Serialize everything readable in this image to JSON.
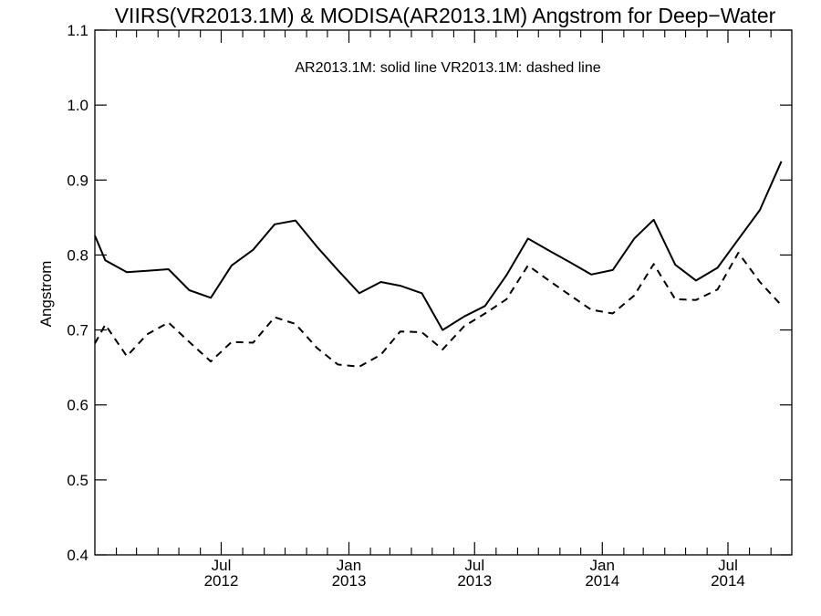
{
  "chart_data": {
    "type": "line",
    "title": "VIIRS(VR2013.1M) & MODISA(AR2013.1M)  Angstrom for Deep−Water",
    "xlabel": "",
    "ylabel": "Angstrom",
    "annotation": "AR2013.1M: solid line   VR2013.1M: dashed line",
    "xlim": [
      "2012-01-01",
      "2014-10-01"
    ],
    "ylim": [
      0.4,
      1.1
    ],
    "yticks": [
      0.4,
      0.5,
      0.6,
      0.7,
      0.8,
      0.9,
      1.0,
      1.1
    ],
    "ytick_labels": [
      "0.4",
      "0.5",
      "0.6",
      "0.7",
      "0.8",
      "0.9",
      "1.0",
      "1.1"
    ],
    "xticks_major": [
      {
        "date": "2012-07-01",
        "month": "Jul",
        "year": "2012"
      },
      {
        "date": "2013-01-01",
        "month": "Jan",
        "year": "2013"
      },
      {
        "date": "2013-07-01",
        "month": "Jul",
        "year": "2013"
      },
      {
        "date": "2014-01-01",
        "month": "Jan",
        "year": "2014"
      },
      {
        "date": "2014-07-01",
        "month": "Jul",
        "year": "2014"
      }
    ],
    "xticks_minor": [
      "2012-02-01",
      "2012-03-01",
      "2012-04-01",
      "2012-05-01",
      "2012-06-01",
      "2012-08-01",
      "2012-09-01",
      "2012-10-01",
      "2012-11-01",
      "2012-12-01",
      "2013-02-01",
      "2013-03-01",
      "2013-04-01",
      "2013-05-01",
      "2013-06-01",
      "2013-08-01",
      "2013-09-01",
      "2013-10-01",
      "2013-11-01",
      "2013-12-01",
      "2014-02-01",
      "2014-03-01",
      "2014-04-01",
      "2014-05-01",
      "2014-06-01",
      "2014-08-01",
      "2014-09-01"
    ],
    "grid": false,
    "series": [
      {
        "style": "solid",
        "color": "#000000",
        "points": [
          [
            "2012-01-01",
            0.826
          ],
          [
            "2012-01-16",
            0.793
          ],
          [
            "2012-02-16",
            0.777
          ],
          [
            "2012-03-16",
            0.779
          ],
          [
            "2012-04-16",
            0.781
          ],
          [
            "2012-05-16",
            0.753
          ],
          [
            "2012-06-16",
            0.743
          ],
          [
            "2012-07-16",
            0.786
          ],
          [
            "2012-08-16",
            0.807
          ],
          [
            "2012-09-16",
            0.841
          ],
          [
            "2012-10-16",
            0.846
          ],
          [
            "2012-11-16",
            0.811
          ],
          [
            "2012-12-16",
            0.78
          ],
          [
            "2013-01-16",
            0.749
          ],
          [
            "2013-02-16",
            0.764
          ],
          [
            "2013-03-16",
            0.759
          ],
          [
            "2013-04-16",
            0.749
          ],
          [
            "2013-05-16",
            0.7
          ],
          [
            "2013-06-16",
            0.718
          ],
          [
            "2013-07-16",
            0.732
          ],
          [
            "2013-08-16",
            0.773
          ],
          [
            "2013-09-16",
            0.822
          ],
          [
            "2013-10-16",
            0.806
          ],
          [
            "2013-11-16",
            0.79
          ],
          [
            "2013-12-16",
            0.774
          ],
          [
            "2014-01-16",
            0.78
          ],
          [
            "2014-02-16",
            0.822
          ],
          [
            "2014-03-16",
            0.847
          ],
          [
            "2014-04-16",
            0.787
          ],
          [
            "2014-05-16",
            0.766
          ],
          [
            "2014-06-16",
            0.783
          ],
          [
            "2014-07-16",
            0.821
          ],
          [
            "2014-08-16",
            0.86
          ],
          [
            "2014-09-16",
            0.925
          ]
        ]
      },
      {
        "style": "dashed",
        "color": "#000000",
        "points": [
          [
            "2012-01-01",
            0.682
          ],
          [
            "2012-01-16",
            0.707
          ],
          [
            "2012-02-16",
            0.665
          ],
          [
            "2012-03-16",
            0.694
          ],
          [
            "2012-04-16",
            0.71
          ],
          [
            "2012-05-16",
            0.684
          ],
          [
            "2012-06-16",
            0.658
          ],
          [
            "2012-07-16",
            0.684
          ],
          [
            "2012-08-16",
            0.683
          ],
          [
            "2012-09-16",
            0.717
          ],
          [
            "2012-10-16",
            0.708
          ],
          [
            "2012-11-16",
            0.676
          ],
          [
            "2012-12-16",
            0.654
          ],
          [
            "2013-01-16",
            0.651
          ],
          [
            "2013-02-16",
            0.667
          ],
          [
            "2013-03-16",
            0.698
          ],
          [
            "2013-04-16",
            0.697
          ],
          [
            "2013-05-16",
            0.674
          ],
          [
            "2013-06-16",
            0.705
          ],
          [
            "2013-07-16",
            0.722
          ],
          [
            "2013-08-16",
            0.741
          ],
          [
            "2013-09-16",
            0.786
          ],
          [
            "2013-10-16",
            0.766
          ],
          [
            "2013-11-16",
            0.746
          ],
          [
            "2013-12-16",
            0.727
          ],
          [
            "2014-01-16",
            0.722
          ],
          [
            "2014-02-16",
            0.746
          ],
          [
            "2014-03-16",
            0.788
          ],
          [
            "2014-04-16",
            0.741
          ],
          [
            "2014-05-16",
            0.74
          ],
          [
            "2014-06-16",
            0.754
          ],
          [
            "2014-07-16",
            0.803
          ],
          [
            "2014-08-16",
            0.764
          ],
          [
            "2014-09-16",
            0.733
          ]
        ]
      }
    ]
  }
}
